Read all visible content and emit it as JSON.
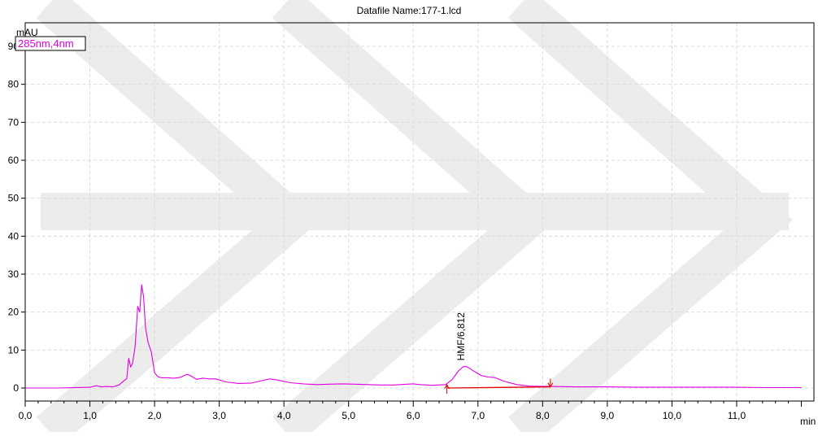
{
  "chart_data": {
    "type": "line",
    "title": "Datafile Name:177-1.lcd",
    "ylabel": "mAU",
    "xlabel": "min",
    "xlim": [
      0.0,
      12.0
    ],
    "ylim": [
      -2,
      92
    ],
    "x_ticks": [
      0.0,
      1.0,
      2.0,
      3.0,
      4.0,
      5.0,
      6.0,
      7.0,
      8.0,
      9.0,
      10.0,
      11.0
    ],
    "x_tick_labels": [
      "0,0",
      "1,0",
      "2,0",
      "3,0",
      "4,0",
      "5,0",
      "6,0",
      "7,0",
      "8,0",
      "9,0",
      "10,0",
      "11,0"
    ],
    "y_ticks": [
      0,
      10,
      20,
      30,
      40,
      50,
      60,
      70,
      80,
      90
    ],
    "y_tick_labels": [
      "0",
      "10",
      "20",
      "30",
      "40",
      "50",
      "60",
      "70",
      "80",
      "90"
    ],
    "grid": true,
    "legend": {
      "position": "top-left",
      "entries": [
        "285nm,4nm"
      ]
    },
    "colors": {
      "trace": "#e000e0",
      "baseline": "#e00000",
      "marker": "#e00000",
      "grid": "#dcdcdc",
      "axis": "#000000",
      "legend_text": "#e000e0"
    },
    "series": [
      {
        "name": "285nm,4nm",
        "x": [
          0.0,
          0.5,
          1.0,
          1.1,
          1.18,
          1.25,
          1.35,
          1.45,
          1.52,
          1.57,
          1.6,
          1.63,
          1.66,
          1.7,
          1.74,
          1.77,
          1.8,
          1.83,
          1.86,
          1.9,
          1.95,
          2.0,
          2.05,
          2.1,
          2.2,
          2.3,
          2.4,
          2.5,
          2.55,
          2.65,
          2.75,
          2.85,
          2.95,
          3.1,
          3.3,
          3.5,
          3.65,
          3.78,
          3.9,
          4.1,
          4.3,
          4.5,
          4.7,
          4.9,
          5.1,
          5.3,
          5.5,
          5.7,
          5.9,
          6.0,
          6.1,
          6.3,
          6.5,
          6.6,
          6.7,
          6.77,
          6.81,
          6.86,
          6.95,
          7.05,
          7.15,
          7.25,
          7.4,
          7.6,
          7.8,
          8.1,
          8.5,
          9.0,
          9.5,
          10.0,
          10.5,
          11.0,
          11.5,
          12.0
        ],
        "y": [
          0.0,
          0.0,
          0.2,
          0.6,
          0.3,
          0.4,
          0.3,
          0.8,
          1.8,
          2.5,
          7.8,
          5.5,
          6.5,
          11.0,
          21.5,
          20.0,
          27.2,
          24.0,
          16.0,
          12.0,
          9.5,
          4.0,
          3.0,
          2.7,
          2.7,
          2.6,
          2.8,
          3.6,
          3.3,
          2.3,
          2.6,
          2.4,
          2.4,
          1.6,
          1.2,
          1.3,
          1.9,
          2.4,
          2.1,
          1.4,
          1.1,
          0.9,
          1.0,
          1.1,
          1.0,
          0.9,
          0.8,
          0.8,
          1.0,
          1.1,
          0.9,
          0.7,
          0.9,
          2.2,
          4.5,
          5.6,
          5.7,
          5.3,
          4.3,
          3.3,
          2.9,
          2.8,
          1.8,
          0.9,
          0.5,
          0.4,
          0.3,
          0.3,
          0.2,
          0.2,
          0.2,
          0.2,
          0.1,
          0.1
        ]
      }
    ],
    "baseline": {
      "x": [
        6.52,
        8.12
      ],
      "y": [
        0.0,
        0.3
      ]
    },
    "peak_markers": [
      {
        "x": 6.52,
        "y": 0.0
      },
      {
        "x": 8.12,
        "y": 0.3
      }
    ],
    "annotations": [
      {
        "text": "HMF/6,812",
        "x": 6.812,
        "y": 5.7
      }
    ]
  }
}
